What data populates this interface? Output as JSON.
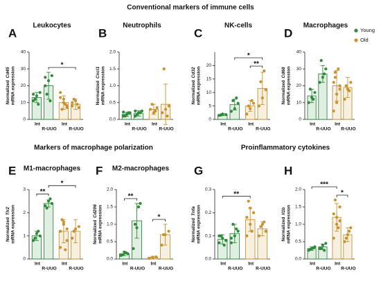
{
  "headings": [
    "Conventional markers of immune cells",
    "Markers of macrophage polarization",
    "Proinflammatory cytokines"
  ],
  "legend": [
    {
      "name": "Young",
      "color": "#2e8b3a"
    },
    {
      "name": "Old",
      "color": "#c9922e"
    }
  ],
  "chart_data": [
    {
      "type": "bar",
      "panel": "A",
      "title": "Leukocytes",
      "ylabel": [
        "Normalized",
        "Cd45",
        "mRNA expression"
      ],
      "categories": [
        "Int",
        "R-UUO",
        "Int",
        "R-UUO"
      ],
      "values": [
        13,
        20,
        10,
        9
      ],
      "errors": [
        3,
        8,
        4,
        3
      ],
      "points": [
        [
          11,
          14,
          16,
          12,
          9,
          15
        ],
        [
          25,
          23,
          26,
          15,
          11,
          20
        ],
        [
          16,
          12,
          7,
          6,
          9,
          13,
          10,
          8
        ],
        [
          10,
          11,
          7,
          12,
          9,
          8
        ]
      ],
      "ylim": [
        0,
        40
      ],
      "yticks": [
        0,
        10,
        20,
        30,
        40
      ],
      "sig": [
        {
          "pair": [
            1,
            3
          ],
          "label": "*"
        }
      ]
    },
    {
      "type": "bar",
      "panel": "B",
      "title": "Neutrophils",
      "ylabel": [
        "Normalized",
        "Cxcl1",
        "mRNA expression"
      ],
      "categories": [
        "Int",
        "R-UUO",
        "Int",
        "R-UUO"
      ],
      "values": [
        0.15,
        0.18,
        0.3,
        0.45
      ],
      "errors": [
        0.06,
        0.08,
        0.15,
        0.6
      ],
      "points": [
        [
          0.1,
          0.15,
          0.2,
          0.1,
          0.2,
          0.22
        ],
        [
          0.1,
          0.2,
          0.25,
          0.15,
          0.2,
          0.25
        ],
        [
          0.3,
          0.2,
          0.35,
          0.45,
          0.25
        ],
        [
          0.2,
          0.3,
          0.4,
          1.5,
          0.1
        ]
      ],
      "ylim": [
        0,
        2
      ],
      "yticks": [
        {
          "value": 0,
          "label": "0.0"
        },
        0.5,
        {
          "value": 1,
          "label": "1.0"
        },
        1.5,
        {
          "value": 2,
          "label": "2.0"
        }
      ],
      "sig": []
    },
    {
      "type": "bar",
      "panel": "C",
      "title": "NK-cells",
      "ylabel": [
        "Normalized",
        "Cd32",
        "mRNA expression"
      ],
      "categories": [
        "Int",
        "R-UUO",
        "Int",
        "R-UUO"
      ],
      "values": [
        1.8,
        5.5,
        5,
        11.5
      ],
      "errors": [
        0.4,
        2,
        2,
        6
      ],
      "points": [
        [
          1.5,
          2,
          1.8,
          1.6
        ],
        [
          3,
          4,
          6,
          7,
          8
        ],
        [
          2,
          4,
          6,
          5,
          7
        ],
        [
          5,
          8,
          11,
          14,
          18
        ]
      ],
      "ylim": [
        0,
        25
      ],
      "yticks": [
        0,
        5,
        10,
        15,
        20
      ],
      "sig": [
        {
          "pair": [
            2,
            3
          ],
          "label": "**"
        },
        {
          "pair": [
            1,
            3
          ],
          "label": "*"
        }
      ]
    },
    {
      "type": "bar",
      "panel": "D",
      "title": "Macrophages",
      "ylabel": [
        "Normalized",
        "Cd68",
        "mRNA expression"
      ],
      "categories": [
        "Int",
        "R-UUO",
        "Int",
        "R-UUO"
      ],
      "values": [
        14,
        27,
        20,
        19
      ],
      "errors": [
        4,
        5,
        9,
        6
      ],
      "points": [
        [
          10,
          13,
          16,
          18,
          12
        ],
        [
          22,
          25,
          30,
          35,
          27
        ],
        [
          5,
          10,
          18,
          25,
          30,
          22,
          15,
          20,
          28
        ],
        [
          12,
          18,
          22,
          20,
          17
        ]
      ],
      "ylim": [
        0,
        40
      ],
      "yticks": [
        0,
        10,
        20,
        30,
        40
      ],
      "sig": []
    },
    {
      "type": "bar",
      "panel": "E",
      "title": "M1-macrophages",
      "ylabel": [
        "Normalized",
        "Tlr2",
        "mRNA expression"
      ],
      "categories": [
        "Int",
        "R-UUO",
        "Int",
        "R-UUO"
      ],
      "values": [
        1.0,
        2.4,
        1.2,
        1.2
      ],
      "errors": [
        0.2,
        0.15,
        0.5,
        0.5
      ],
      "points": [
        [
          0.8,
          1.1,
          1.0,
          0.9,
          1.2
        ],
        [
          2.3,
          2.5,
          2.4,
          2.2,
          2.6
        ],
        [
          0.5,
          1.5,
          0.8,
          1.7,
          0.4,
          1.2,
          1.6,
          1.3
        ],
        [
          0.9,
          1.3,
          1.4,
          1.2
        ]
      ],
      "ylim": [
        0,
        3
      ],
      "yticks": [
        0,
        1,
        2,
        3
      ],
      "sig": [
        {
          "pair": [
            0,
            1
          ],
          "label": "**"
        },
        {
          "pair": [
            1,
            3
          ],
          "label": "*"
        }
      ]
    },
    {
      "type": "bar",
      "panel": "F",
      "title": "M2-macrophages",
      "ylabel": [
        "Normalized",
        "Cd206",
        "mRNA expression"
      ],
      "categories": [
        "Int",
        "R-UUO",
        "Int",
        "R-UUO"
      ],
      "values": [
        0.15,
        1.1,
        0.05,
        0.7
      ],
      "errors": [
        0.05,
        0.5,
        0.03,
        0.3
      ],
      "points": [
        [
          0.1,
          0.2,
          0.15,
          0.12,
          0.18
        ],
        [
          0.3,
          0.9,
          1.6,
          1.0,
          1.5
        ],
        [
          0.02,
          0.05,
          0.06
        ],
        [
          0.4,
          0.7,
          0.8,
          0.7
        ]
      ],
      "ylim": [
        0,
        2
      ],
      "yticks": [
        {
          "value": 0,
          "label": "0.0"
        },
        0.5,
        {
          "value": 1,
          "label": "1.0"
        },
        1.5,
        {
          "value": 2,
          "label": "2.0"
        }
      ],
      "sig": [
        {
          "pair": [
            0,
            1
          ],
          "label": "**"
        },
        {
          "pair": [
            2,
            3
          ],
          "label": "*"
        }
      ]
    },
    {
      "type": "bar",
      "panel": "G",
      "ylabel": [
        "Normalized",
        "Tnfa",
        "mRNA expression"
      ],
      "categories": [
        "Int",
        "R-UUO",
        "Int",
        "R-UUO"
      ],
      "values": [
        0.085,
        0.11,
        0.17,
        0.13
      ],
      "errors": [
        0.02,
        0.04,
        0.05,
        0.03
      ],
      "points": [
        [
          0.07,
          0.09,
          0.08,
          0.1,
          0.06,
          0.1
        ],
        [
          0.07,
          0.1,
          0.12,
          0.15,
          0.13,
          0.09
        ],
        [
          0.1,
          0.15,
          0.2,
          0.25,
          0.12,
          0.18,
          0.22
        ],
        [
          0.1,
          0.15,
          0.12,
          0.14,
          0.16
        ]
      ],
      "ylim": [
        0,
        0.3
      ],
      "yticks": [
        {
          "value": 0,
          "label": "0.0"
        },
        0.1,
        0.2,
        0.3
      ],
      "sig": [
        {
          "pair": [
            0,
            2
          ],
          "label": "**"
        }
      ]
    },
    {
      "type": "bar",
      "panel": "H",
      "ylabel": [
        "Normalized",
        "Il1b",
        "mRNA expression"
      ],
      "categories": [
        "Int",
        "R-UUO",
        "Int",
        "R-UUO"
      ],
      "values": [
        0.3,
        0.35,
        1.2,
        0.7
      ],
      "errors": [
        0.05,
        0.08,
        0.4,
        0.2
      ],
      "points": [
        [
          0.25,
          0.3,
          0.35,
          0.28,
          0.32
        ],
        [
          0.3,
          0.4,
          0.45,
          0.3,
          0.25
        ],
        [
          0.6,
          1.2,
          1.5,
          1.7,
          0.9,
          1.3,
          1.0,
          1.1
        ],
        [
          0.5,
          0.7,
          0.9,
          0.6,
          0.8
        ]
      ],
      "ylim": [
        0,
        2
      ],
      "yticks": [
        {
          "value": 0,
          "label": "0.0"
        },
        0.5,
        {
          "value": 1,
          "label": "1.0"
        },
        1.5,
        {
          "value": 2,
          "label": "2.0"
        }
      ],
      "sig": [
        {
          "pair": [
            2,
            3
          ],
          "label": "*"
        },
        {
          "pair": [
            0,
            2
          ],
          "label": "***"
        }
      ]
    }
  ]
}
